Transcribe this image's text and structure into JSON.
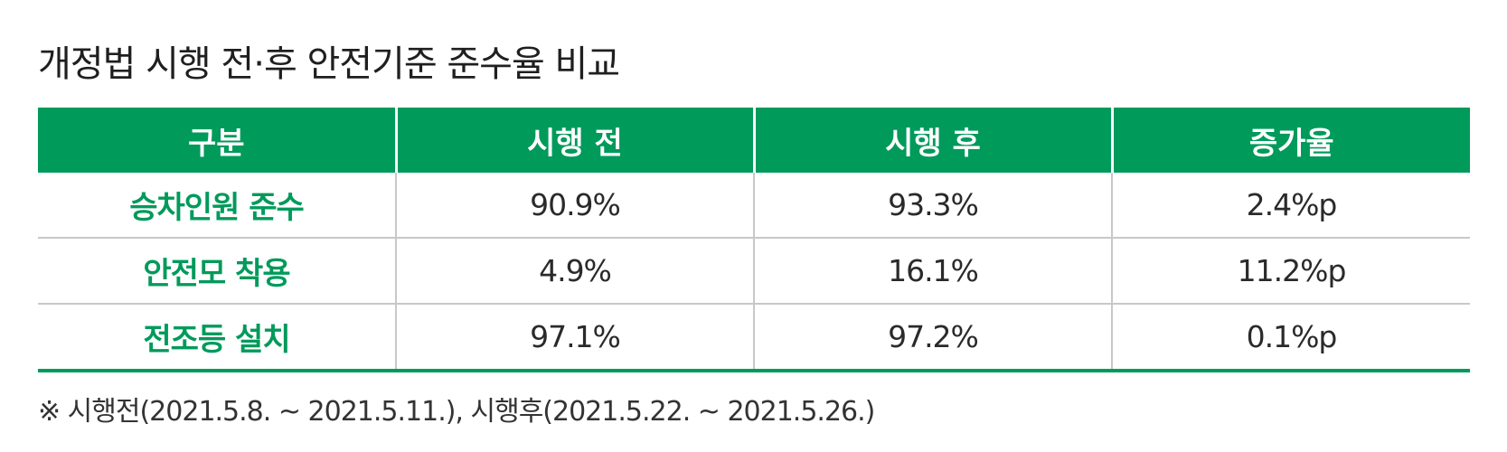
{
  "title": "개정법 시행 전·후 안전기준 준수율 비교",
  "table": {
    "headers": [
      "구분",
      "시행 전",
      "시행 후",
      "증가율"
    ],
    "rows": [
      {
        "label": "승차인원 준수",
        "before": "90.9%",
        "after": "93.3%",
        "increase": "2.4%p"
      },
      {
        "label": "안전모 착용",
        "before": "4.9%",
        "after": "16.1%",
        "increase": "11.2%p"
      },
      {
        "label": "전조등 설치",
        "before": "97.1%",
        "after": "97.2%",
        "increase": "0.1%p"
      }
    ]
  },
  "note": "※ 시행전(2021.5.8. ~ 2021.5.11.), 시행후(2021.5.22. ~ 2021.5.26.)",
  "colors": {
    "accent_green": "#009a5b",
    "grid_gray": "#c8c8c8"
  }
}
